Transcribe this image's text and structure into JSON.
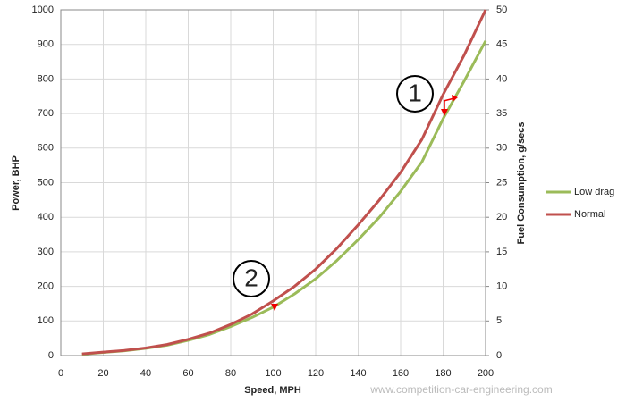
{
  "chart_data": {
    "type": "line",
    "x": [
      10,
      20,
      30,
      40,
      50,
      60,
      70,
      80,
      90,
      100,
      110,
      120,
      130,
      140,
      150,
      160,
      170,
      180,
      190,
      200
    ],
    "series": [
      {
        "name": "Low drag",
        "color": "#9bbb59",
        "values": [
          4,
          9,
          14,
          21,
          30,
          44,
          61,
          84,
          110,
          140,
          178,
          222,
          275,
          335,
          400,
          475,
          560,
          685,
          795,
          910
        ]
      },
      {
        "name": "Normal",
        "color": "#c0504d",
        "values": [
          5,
          10,
          15,
          22,
          32,
          47,
          65,
          90,
          120,
          158,
          200,
          250,
          310,
          378,
          450,
          530,
          625,
          755,
          870,
          1000
        ]
      }
    ],
    "xlabel": "Speed, MPH",
    "ylabel": "Power, BHP",
    "y2label": "Fuel Consumption, g/secs",
    "xlim": [
      0,
      200
    ],
    "xticks": [
      0,
      20,
      40,
      60,
      80,
      100,
      120,
      140,
      160,
      180,
      200
    ],
    "ylim": [
      0,
      1000
    ],
    "yticks": [
      0,
      100,
      200,
      300,
      400,
      500,
      600,
      700,
      800,
      900,
      1000
    ],
    "y2lim": [
      0,
      50
    ],
    "y2ticks": [
      0,
      5,
      10,
      15,
      20,
      25,
      30,
      35,
      40,
      45,
      50
    ],
    "grid": true,
    "legend": "right",
    "annotations": [
      "1",
      "2"
    ],
    "watermark": "www.competition-car-engineering.com"
  }
}
